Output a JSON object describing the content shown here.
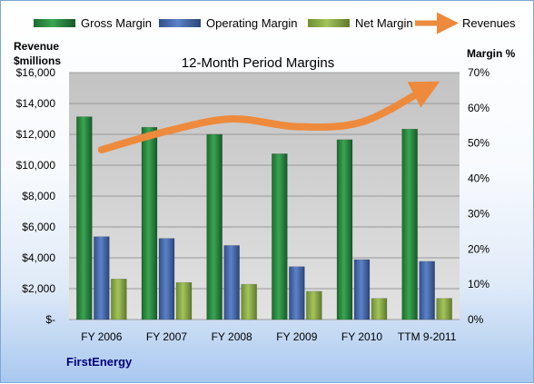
{
  "company": "FirstEnergy",
  "chart_data": {
    "type": "bar",
    "title": "12-Month Period Margins",
    "ylabel_left": [
      "Revenue",
      "$millions"
    ],
    "ylabel_right": "Margin %",
    "categories": [
      "FY 2006",
      "FY 2007",
      "FY 2008",
      "FY 2009",
      "FY 2010",
      "TTM 9-2011"
    ],
    "left_ticks": [
      "$-",
      "$2,000",
      "$4,000",
      "$6,000",
      "$8,000",
      "$10,000",
      "$12,000",
      "$14,000",
      "$16,000"
    ],
    "right_ticks": [
      "0%",
      "10%",
      "20%",
      "30%",
      "40%",
      "50%",
      "60%",
      "70%"
    ],
    "ylim_left": [
      0,
      16000
    ],
    "ylim_right": [
      0,
      70
    ],
    "grid": true,
    "legend_position": "top",
    "series": [
      {
        "name": "Gross Margin",
        "axis": "right",
        "kind": "bar",
        "color": "#2e8b3e",
        "values": [
          57.5,
          54.5,
          52.5,
          47,
          51,
          54
        ]
      },
      {
        "name": "Operating Margin",
        "axis": "right",
        "kind": "bar",
        "color": "#4a6fb3",
        "values": [
          23.5,
          23,
          21,
          15,
          17,
          16.5
        ]
      },
      {
        "name": "Net Margin",
        "axis": "right",
        "kind": "bar",
        "color": "#8db04a",
        "values": [
          11.5,
          10.5,
          10,
          8,
          6,
          6
        ]
      },
      {
        "name": "Revenues",
        "axis": "left",
        "kind": "line",
        "color": "#ee8a3c",
        "values": [
          11000,
          12200,
          13000,
          12500,
          12800,
          15000
        ]
      }
    ]
  }
}
